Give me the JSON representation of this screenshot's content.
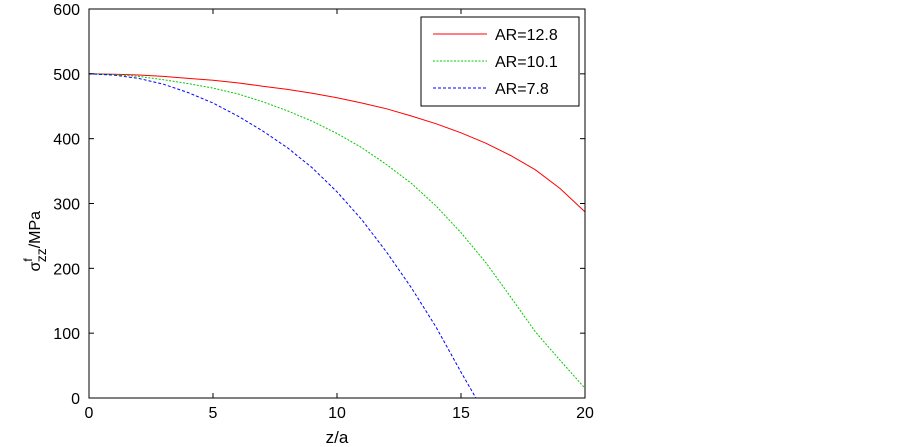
{
  "chart_data": {
    "type": "line",
    "title": "",
    "xlabel": "z/a",
    "ylabel": {
      "base": "σ",
      "superscript": "f",
      "subscript": "zz",
      "unit": "/MPa"
    },
    "xlim": [
      0,
      20
    ],
    "ylim": [
      0,
      600
    ],
    "xticks": [
      "0",
      "5",
      "10",
      "15",
      "20"
    ],
    "yticks": [
      "0",
      "100",
      "200",
      "300",
      "400",
      "500",
      "600"
    ],
    "grid": false,
    "legend_position": "top-right",
    "series": [
      {
        "name": "AR=12.8",
        "color": "#ff0000",
        "dash": "solid",
        "x": [
          0,
          1,
          2,
          3,
          4,
          5,
          6,
          7,
          8,
          9,
          10,
          11,
          12,
          13,
          14,
          15,
          16,
          17,
          18,
          19,
          20
        ],
        "y": [
          500,
          499.5,
          498.2,
          496,
          493,
          490,
          486,
          481,
          476,
          470,
          463,
          455,
          446,
          435,
          423,
          409,
          393,
          374,
          352,
          323,
          287
        ]
      },
      {
        "name": "AR=10.1",
        "color": "#00cc00",
        "dash": "dotted",
        "x": [
          0,
          1,
          2,
          3,
          4,
          5,
          6,
          7,
          8,
          9,
          10,
          11,
          12,
          13,
          14,
          15,
          16,
          17,
          18,
          19,
          20
        ],
        "y": [
          500,
          499,
          496,
          491,
          485,
          478,
          469,
          457,
          443,
          427,
          408,
          386,
          360,
          331,
          296,
          255,
          209,
          156,
          102,
          58,
          15
        ]
      },
      {
        "name": "AR=7.8",
        "color": "#0000ff",
        "dash": "dashed",
        "x": [
          0,
          1,
          2,
          3,
          4,
          5,
          6,
          7,
          8,
          9,
          10,
          11,
          12,
          13,
          14,
          15,
          15.6
        ],
        "y": [
          500,
          498,
          493,
          484,
          471,
          455,
          435,
          412,
          386,
          355,
          318,
          275,
          225,
          170,
          109,
          40,
          0
        ]
      }
    ]
  }
}
